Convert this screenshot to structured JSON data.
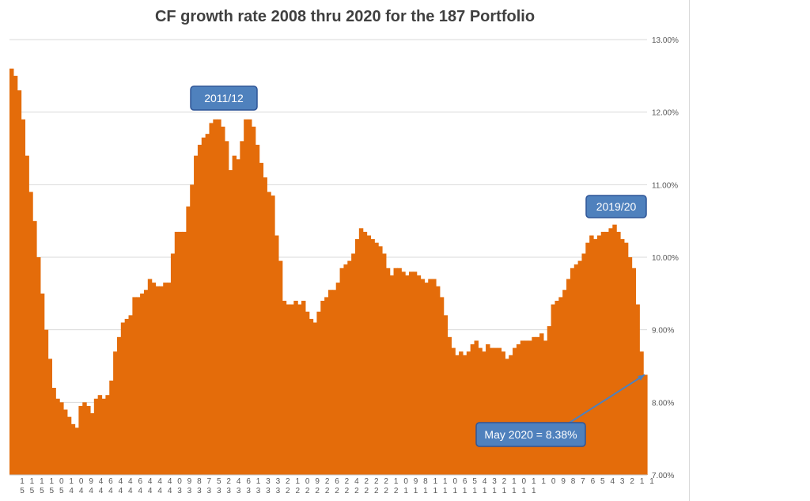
{
  "chart_data": {
    "type": "area",
    "title": "CF growth rate 2008 thru 2020 for the 187 Portfolio",
    "xlabel": "",
    "ylabel": "",
    "ylim": [
      7.0,
      13.0
    ],
    "y_ticks": [
      "7.00%",
      "8.00%",
      "9.00%",
      "10.00%",
      "11.00%",
      "12.00%",
      "13.00%"
    ],
    "y_axis_position": "right",
    "grid": true,
    "color": "#e46c0a",
    "x_tick_labels": [
      [
        "1",
        "5"
      ],
      [
        "1",
        "5"
      ],
      [
        "1",
        "5"
      ],
      [
        "1",
        "5"
      ],
      [
        "0",
        "5"
      ],
      [
        "1",
        "4"
      ],
      [
        "0",
        "4"
      ],
      [
        "9",
        "4"
      ],
      [
        "4",
        "4"
      ],
      [
        "6",
        "4"
      ],
      [
        "4",
        "4"
      ],
      [
        "4",
        "4"
      ],
      [
        "6",
        "4"
      ],
      [
        "4",
        "4"
      ],
      [
        "4",
        "4"
      ],
      [
        "4",
        "4"
      ],
      [
        "0",
        "3"
      ],
      [
        "9",
        "3"
      ],
      [
        "8",
        "3"
      ],
      [
        "7",
        "3"
      ],
      [
        "5",
        "3"
      ],
      [
        "2",
        "3"
      ],
      [
        "4",
        "3"
      ],
      [
        "6",
        "3"
      ],
      [
        "1",
        "3"
      ],
      [
        "3",
        "3"
      ],
      [
        "3",
        "3"
      ],
      [
        "2",
        "2"
      ],
      [
        "1",
        "2"
      ],
      [
        "0",
        "2"
      ],
      [
        "9",
        "2"
      ],
      [
        "2",
        "2"
      ],
      [
        "6",
        "2"
      ],
      [
        "2",
        "2"
      ],
      [
        "4",
        "2"
      ],
      [
        "2",
        "2"
      ],
      [
        "2",
        "2"
      ],
      [
        "2",
        "2"
      ],
      [
        "1",
        "2"
      ],
      [
        "0",
        "1"
      ],
      [
        "9",
        "1"
      ],
      [
        "8",
        "1"
      ],
      [
        "1",
        "1"
      ],
      [
        "1",
        "1"
      ],
      [
        "0",
        "1"
      ],
      [
        "6",
        "1"
      ],
      [
        "5",
        "1"
      ],
      [
        "4",
        "1"
      ],
      [
        "3",
        "1"
      ],
      [
        "2",
        "1"
      ],
      [
        "1",
        "1"
      ],
      [
        "0",
        "1"
      ],
      [
        "1",
        "1"
      ],
      [
        "1",
        ""
      ],
      [
        "0",
        ""
      ],
      [
        "9",
        ""
      ],
      [
        "8",
        ""
      ],
      [
        "7",
        ""
      ],
      [
        "6",
        ""
      ],
      [
        "5",
        ""
      ],
      [
        "4",
        ""
      ],
      [
        "3",
        ""
      ],
      [
        "2",
        ""
      ],
      [
        "1",
        ""
      ],
      [
        "1",
        ""
      ]
    ],
    "values": [
      12.6,
      12.5,
      12.3,
      11.9,
      11.4,
      10.9,
      10.5,
      10.0,
      9.5,
      9.0,
      8.6,
      8.2,
      8.05,
      8.0,
      7.9,
      7.8,
      7.7,
      7.65,
      7.95,
      8.0,
      7.95,
      7.85,
      8.05,
      8.1,
      8.05,
      8.1,
      8.3,
      8.7,
      8.9,
      9.1,
      9.15,
      9.2,
      9.45,
      9.45,
      9.5,
      9.55,
      9.7,
      9.65,
      9.6,
      9.6,
      9.65,
      9.65,
      10.05,
      10.35,
      10.35,
      10.35,
      10.7,
      11.0,
      11.4,
      11.55,
      11.65,
      11.7,
      11.85,
      11.9,
      11.9,
      11.8,
      11.6,
      11.2,
      11.4,
      11.35,
      11.6,
      11.9,
      11.9,
      11.8,
      11.55,
      11.3,
      11.1,
      10.9,
      10.85,
      10.3,
      9.95,
      9.4,
      9.35,
      9.35,
      9.4,
      9.35,
      9.4,
      9.25,
      9.15,
      9.1,
      9.25,
      9.4,
      9.45,
      9.55,
      9.55,
      9.65,
      9.85,
      9.9,
      9.95,
      10.05,
      10.25,
      10.4,
      10.35,
      10.3,
      10.25,
      10.2,
      10.15,
      10.05,
      9.85,
      9.75,
      9.85,
      9.85,
      9.8,
      9.75,
      9.8,
      9.8,
      9.75,
      9.7,
      9.65,
      9.7,
      9.7,
      9.6,
      9.45,
      9.2,
      8.9,
      8.75,
      8.65,
      8.7,
      8.65,
      8.7,
      8.8,
      8.85,
      8.75,
      8.7,
      8.8,
      8.75,
      8.75,
      8.75,
      8.7,
      8.6,
      8.65,
      8.75,
      8.8,
      8.85,
      8.85,
      8.85,
      8.9,
      8.9,
      8.95,
      8.85,
      9.05,
      9.35,
      9.4,
      9.45,
      9.55,
      9.7,
      9.85,
      9.9,
      9.95,
      10.05,
      10.2,
      10.3,
      10.25,
      10.3,
      10.35,
      10.35,
      10.4,
      10.45,
      10.35,
      10.25,
      10.2,
      10.0,
      9.85,
      9.35,
      8.7,
      8.38
    ],
    "annotations": [
      {
        "text": "2011/12"
      },
      {
        "text": "2019/20"
      },
      {
        "text": "May 2020 = 8.38%",
        "points_to": 8.38
      }
    ]
  }
}
